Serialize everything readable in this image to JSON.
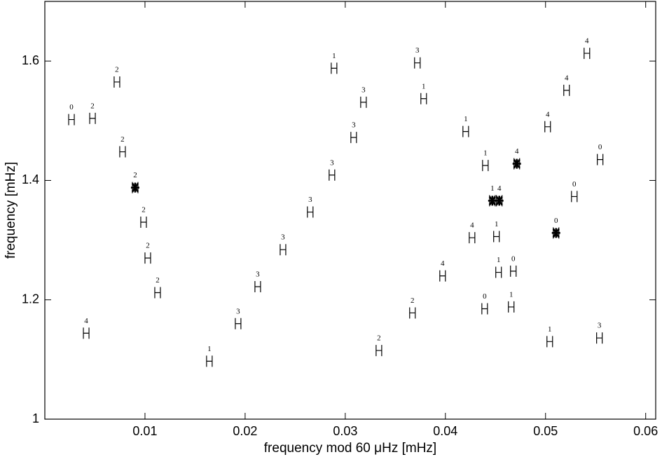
{
  "chart_data": {
    "type": "scatter",
    "xlabel": "frequency mod 60 μHz [mHz]",
    "ylabel": "frequency [mHz]",
    "xlim": [
      0,
      0.061
    ],
    "ylim": [
      1,
      1.7
    ],
    "xticks": [
      0.01,
      0.02,
      0.03,
      0.04,
      0.05,
      0.06
    ],
    "yticks": [
      1,
      1.2,
      1.4,
      1.6
    ],
    "series": [
      {
        "marker": "H",
        "color": "#000000",
        "x": [
          0.00266,
          0.00476,
          0.0072,
          0.00776,
          0.00986,
          0.01028,
          0.01126,
          0.00413,
          0.01643,
          0.0193,
          0.02126,
          0.02378,
          0.0265,
          0.02867,
          0.02888,
          0.03084,
          0.03182,
          0.0372,
          0.03783,
          0.03336,
          0.03671,
          0.03972,
          0.04266,
          0.04203,
          0.04399,
          0.04392,
          0.0451,
          0.04531,
          0.04678,
          0.04657,
          0.05021,
          0.0521,
          0.05413,
          0.05287,
          0.05545,
          0.05042,
          0.05538
        ],
        "values": [
          1.502,
          1.504,
          1.565,
          1.448,
          1.33,
          1.27,
          1.212,
          1.144,
          1.097,
          1.16,
          1.222,
          1.284,
          1.347,
          1.409,
          1.588,
          1.472,
          1.531,
          1.597,
          1.537,
          1.115,
          1.178,
          1.24,
          1.304,
          1.482,
          1.425,
          1.185,
          1.306,
          1.246,
          1.248,
          1.188,
          1.49,
          1.551,
          1.613,
          1.373,
          1.435,
          1.13,
          1.136
        ],
        "degrees": [
          0,
          2,
          2,
          2,
          2,
          2,
          2,
          4,
          1,
          3,
          3,
          3,
          3,
          3,
          1,
          3,
          3,
          3,
          1,
          2,
          2,
          4,
          4,
          1,
          1,
          0,
          1,
          1,
          0,
          1,
          4,
          4,
          4,
          0,
          0,
          1,
          3
        ]
      },
      {
        "marker": "star",
        "color": "#000000",
        "x": [
          0.00902,
          0.04469,
          0.04538,
          0.04713,
          0.05105
        ],
        "values": [
          1.388,
          1.366,
          1.366,
          1.428,
          1.312
        ],
        "degrees": [
          2,
          1,
          4,
          4,
          0
        ]
      }
    ]
  }
}
